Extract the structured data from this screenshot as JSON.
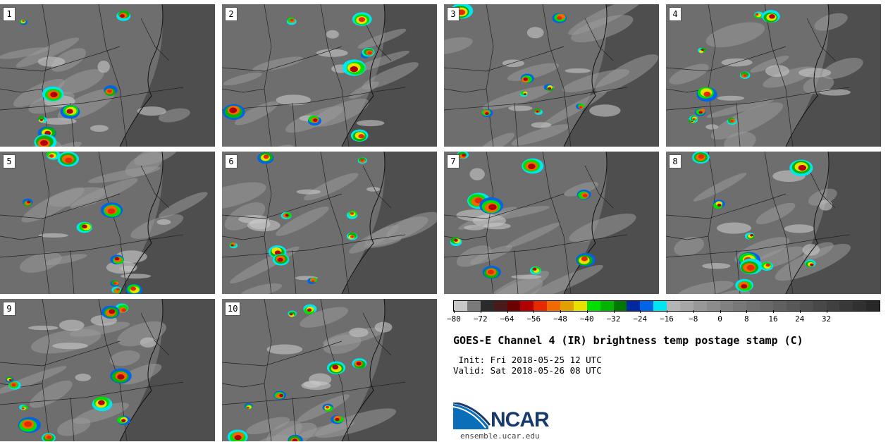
{
  "title": "GOES-E Channel 4 (IR) brightness temp postage stamp (C)",
  "init": " Init: Fri 2018-05-25 12 UTC",
  "valid": "Valid: Sat 2018-05-26 08 UTC",
  "logo_text": "NCAR",
  "url": "ensemble.ucar.edu",
  "panels": [
    "1",
    "2",
    "3",
    "4",
    "5",
    "6",
    "7",
    "8",
    "9",
    "10"
  ],
  "colorbar": {
    "colors": [
      "#c8c8c8",
      "#7a7a7a",
      "#2a2a2a",
      "#4a1a1a",
      "#6e0000",
      "#b20000",
      "#e62a00",
      "#f06a00",
      "#e0a000",
      "#e8e000",
      "#00e000",
      "#00b400",
      "#007800",
      "#0028a0",
      "#0064e6",
      "#00e6f0",
      "#b4b4b4",
      "#a6a6a6",
      "#989898",
      "#8c8c8c",
      "#808080",
      "#787878",
      "#707070",
      "#686868",
      "#606060",
      "#585858",
      "#505050",
      "#484848",
      "#404040",
      "#383838",
      "#303030",
      "#282828"
    ],
    "tick_labels": [
      "−80",
      "−72",
      "−64",
      "−56",
      "−48",
      "−40",
      "−32",
      "−24",
      "−16",
      "−8",
      "0",
      "8",
      "16",
      "24",
      "32"
    ]
  }
}
